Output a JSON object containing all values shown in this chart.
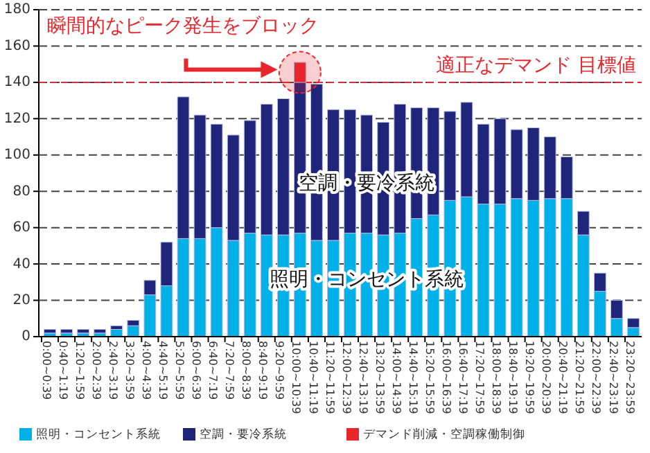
{
  "chart_data": {
    "type": "bar",
    "stacked": true,
    "categories": [
      "0:00~0:39",
      "0:40~1:19",
      "1:20~1:59",
      "2:00~2:39",
      "2:40~3:19",
      "3:20~3:59",
      "4:00~4:39",
      "4:40~5:19",
      "5:20~5:59",
      "6:00~6:39",
      "6:40~7:19",
      "7:20~7:59",
      "8:00~8:39",
      "8:40~9:19",
      "9:20~9:59",
      "10:00~10:39",
      "10:40~11:19",
      "11:20~11:59",
      "12:00~12:39",
      "12:40~13:19",
      "13:20~13:59",
      "14:00~14:39",
      "14:40~15:19",
      "15:20~15:59",
      "16:00~16:39",
      "16:40~17:19",
      "17:20~17:59",
      "18:00~18:39",
      "18:40~19:19",
      "19:20~19:59",
      "20:00~20:39",
      "20:40~21:19",
      "21:20~21:59",
      "22:00~22:39",
      "22:40~23:19",
      "23:20~23:59"
    ],
    "series": [
      {
        "name": "照明・コンセント系統",
        "color": "#00b0e8",
        "values": [
          2,
          2,
          2,
          2,
          4,
          6,
          23,
          28,
          54,
          54,
          60,
          53,
          57,
          56,
          56,
          57,
          53,
          53,
          57,
          57,
          56,
          57,
          65,
          67,
          75,
          77,
          73,
          73,
          76,
          75,
          76,
          76,
          56,
          25,
          10,
          5
        ]
      },
      {
        "name": "空調・要冷系統",
        "color": "#1f257a",
        "values": [
          2,
          2,
          2,
          2,
          2,
          3,
          8,
          24,
          78,
          68,
          57,
          58,
          62,
          72,
          75,
          83,
          86,
          72,
          68,
          65,
          62,
          71,
          61,
          59,
          49,
          52,
          44,
          47,
          38,
          40,
          34,
          23,
          13,
          10,
          10,
          5
        ]
      },
      {
        "name": "デマンド削減・空調稼働制御",
        "color": "#e8262c",
        "values": [
          null,
          null,
          null,
          null,
          null,
          null,
          null,
          null,
          null,
          null,
          null,
          null,
          null,
          null,
          null,
          11,
          null,
          null,
          null,
          null,
          null,
          null,
          null,
          null,
          null,
          null,
          null,
          null,
          null,
          null,
          null,
          null,
          null,
          null,
          null,
          null
        ]
      }
    ],
    "ylim": [
      0,
      180
    ],
    "yticks": [
      0,
      20,
      40,
      60,
      80,
      100,
      120,
      140,
      160,
      180
    ],
    "grid": "y",
    "legend": "bottom",
    "ref_lines": [
      {
        "axis": "y",
        "value": 140,
        "label": "適正なデマンド 目標値",
        "color": "#e8262c",
        "line_style": "dashed"
      }
    ],
    "annotations": [
      "瞬間的なピーク発生をブロック",
      {
        "text": "空調・要冷系統",
        "x": "12:40~13:19",
        "y": 84
      },
      {
        "text": "照明・コンセント系統",
        "x": "12:40~13:19",
        "y": 31
      }
    ]
  }
}
